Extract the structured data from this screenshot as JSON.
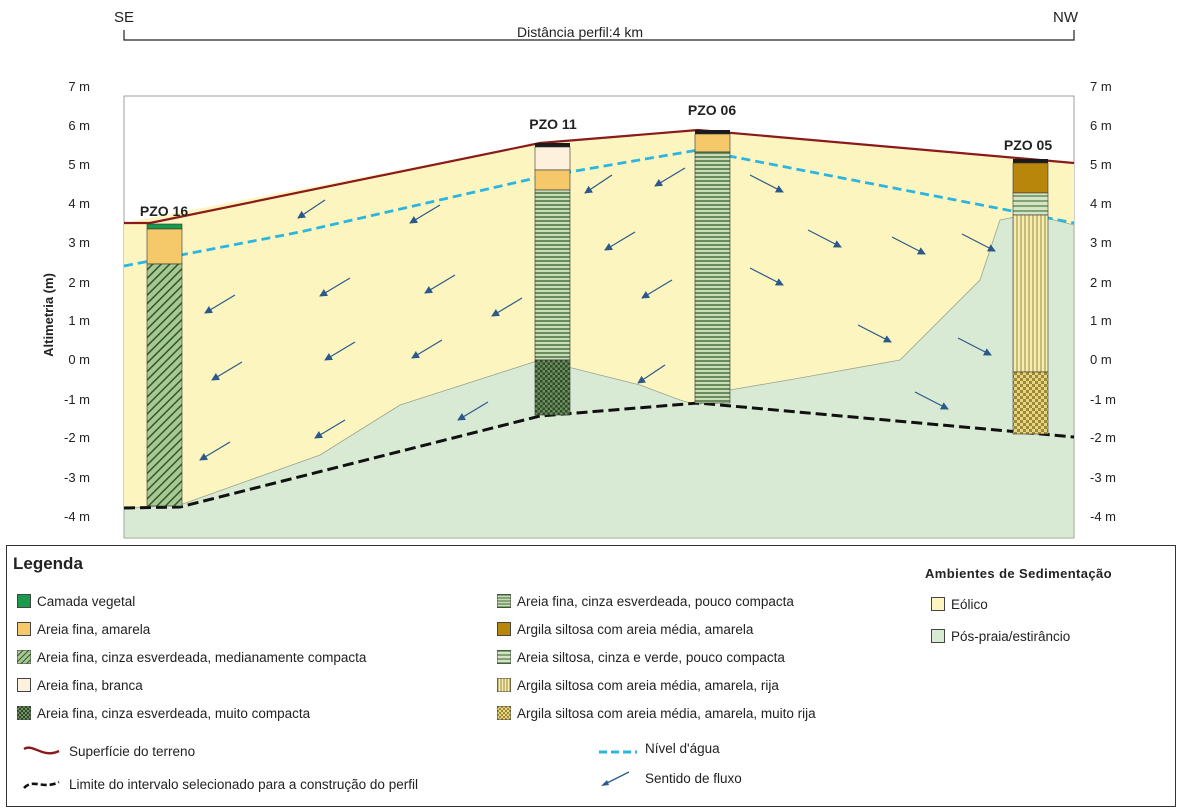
{
  "profile": {
    "dir_left": "SE",
    "dir_right": "NW",
    "distance_label": "Distância perfil:4 km"
  },
  "axis": {
    "ylabel": "Altimetria (m)",
    "ticks": [
      "7 m",
      "6 m",
      "5 m",
      "4 m",
      "3 m",
      "2 m",
      "1 m",
      "0 m",
      "-1 m",
      "-2 m",
      "-3 m",
      "-4 m"
    ]
  },
  "wells": [
    {
      "name": "PZO 16"
    },
    {
      "name": "PZO 11"
    },
    {
      "name": "PZO 06"
    },
    {
      "name": "PZO 05"
    }
  ],
  "legend": {
    "title": "Legenda",
    "items_left": [
      {
        "label": "Camada vegetal",
        "color": "#1a9a4a"
      },
      {
        "label": "Areia fina, amarela",
        "color": "#f5c96a"
      },
      {
        "label": "Areia fina, cinza esverdeada, medianamente compacta",
        "color": "#6e9a5a"
      },
      {
        "label": "Areia fina, branca",
        "color": "#fdf0dc"
      },
      {
        "label": "Areia fina, cinza esverdeada, muito compacta",
        "color": "#6e9060"
      }
    ],
    "items_mid": [
      {
        "label": "Areia fina, cinza esverdeada, pouco compacta",
        "color": "#a4c08c"
      },
      {
        "label": "Argila siltosa com areia média, amarela",
        "color": "#b8860b"
      },
      {
        "label": "Areia siltosa, cinza e verde, pouco compacta",
        "color": "#8fb07a"
      },
      {
        "label": "Argila siltosa com areia média, amarela, rija",
        "color": "#efe29a"
      },
      {
        "label": "Argila siltosa com areia média, amarela, muito rija",
        "color": "#d6c36a"
      }
    ],
    "lines": [
      {
        "label": "Superfície do terreno",
        "color": "#8b1a1a"
      },
      {
        "label": "Limite do intervalo selecionado para a construção do perfil",
        "color": "#111111"
      },
      {
        "label": "Nível d'água",
        "color": "#2bb5e0"
      },
      {
        "label": "Sentido de fluxo",
        "color": "#2b5a8a"
      }
    ],
    "ambientes_title": "Ambientes de Sedimentação",
    "ambientes": [
      {
        "label": "Eólico",
        "color": "#fdf5c0"
      },
      {
        "label": "Pós-praia/estirâncio",
        "color": "#d8ead4"
      }
    ]
  },
  "colors": {
    "eolico": "#fdf5c0",
    "pos_praia": "#d8ead4",
    "terrain": "#8b1a1a",
    "water": "#2bb5e0",
    "flow": "#2b5a8a"
  }
}
